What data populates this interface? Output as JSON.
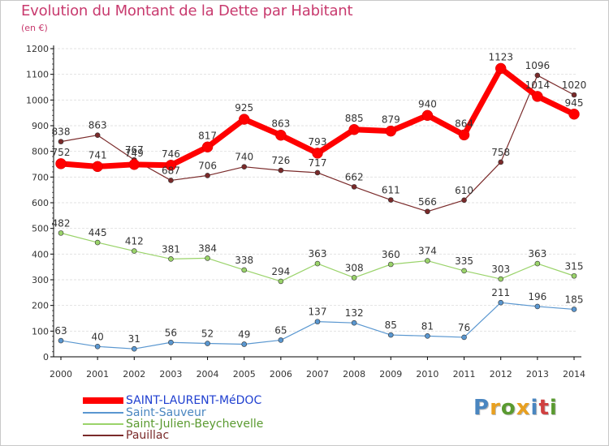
{
  "title": "Evolution du Montant de la Dette par Habitant",
  "subtitle": "(en €)",
  "logo": "Proxiti",
  "colors": {
    "title": "#c83a6e",
    "grid": "#e2e2e2",
    "axis": "#000000",
    "tick_label": "#333333",
    "data_label": "#333333"
  },
  "chart_data": {
    "type": "line",
    "x": [
      2000,
      2001,
      2002,
      2003,
      2004,
      2005,
      2006,
      2007,
      2008,
      2009,
      2010,
      2011,
      2012,
      2013,
      2014
    ],
    "xlabel": "",
    "ylabel": "",
    "ylim": [
      0,
      1200
    ],
    "yticks": [
      0,
      100,
      200,
      300,
      400,
      500,
      600,
      700,
      800,
      900,
      1000,
      1100,
      1200
    ],
    "grid": "horizontal",
    "legend_position": "bottom-left",
    "series": [
      {
        "name": "SAINT-LAURENT-MéDOC",
        "color": "#ff0000",
        "legend_color": "#1f3fd0",
        "style": "thick",
        "values": [
          752,
          741,
          749,
          746,
          817,
          925,
          863,
          793,
          885,
          879,
          940,
          864,
          1123,
          1014,
          945
        ],
        "labels": [
          "752",
          "741",
          "749",
          "746",
          "817",
          "925",
          "863",
          "793",
          "885",
          "879",
          "940",
          "864",
          "1123",
          "1014",
          "945"
        ]
      },
      {
        "name": "Saint-Sauveur",
        "color": "#5a97d0",
        "legend_color": "#4a86c0",
        "style": "thin",
        "values": [
          63,
          40,
          31,
          56,
          52,
          49,
          65,
          137,
          132,
          85,
          81,
          76,
          211,
          196,
          185
        ],
        "labels": [
          "63",
          "40",
          "31",
          "56",
          "52",
          "49",
          "65",
          "137",
          "132",
          "85",
          "81",
          "76",
          "211",
          "196",
          "185"
        ]
      },
      {
        "name": "Saint-Julien-Beychevelle",
        "color": "#9ad36a",
        "legend_color": "#5a9a30",
        "style": "thin",
        "values": [
          482,
          445,
          412,
          381,
          384,
          338,
          294,
          363,
          308,
          360,
          374,
          335,
          303,
          363,
          315
        ],
        "labels": [
          "482",
          "445",
          "412",
          "381",
          "384",
          "338",
          "294",
          "363",
          "308",
          "360",
          "374",
          "335",
          "303",
          "363",
          "315"
        ]
      },
      {
        "name": "Pauillac",
        "color": "#7a2a2a",
        "legend_color": "#7a2a2a",
        "style": "thin",
        "values": [
          838,
          863,
          767,
          687,
          706,
          740,
          726,
          717,
          662,
          611,
          566,
          610,
          758,
          1096,
          1020
        ],
        "labels": [
          "838",
          "863",
          "767",
          "687",
          "706",
          "740",
          "726",
          "717",
          "662",
          "611",
          "566",
          "610",
          "758",
          "1096",
          "1020"
        ]
      }
    ]
  }
}
